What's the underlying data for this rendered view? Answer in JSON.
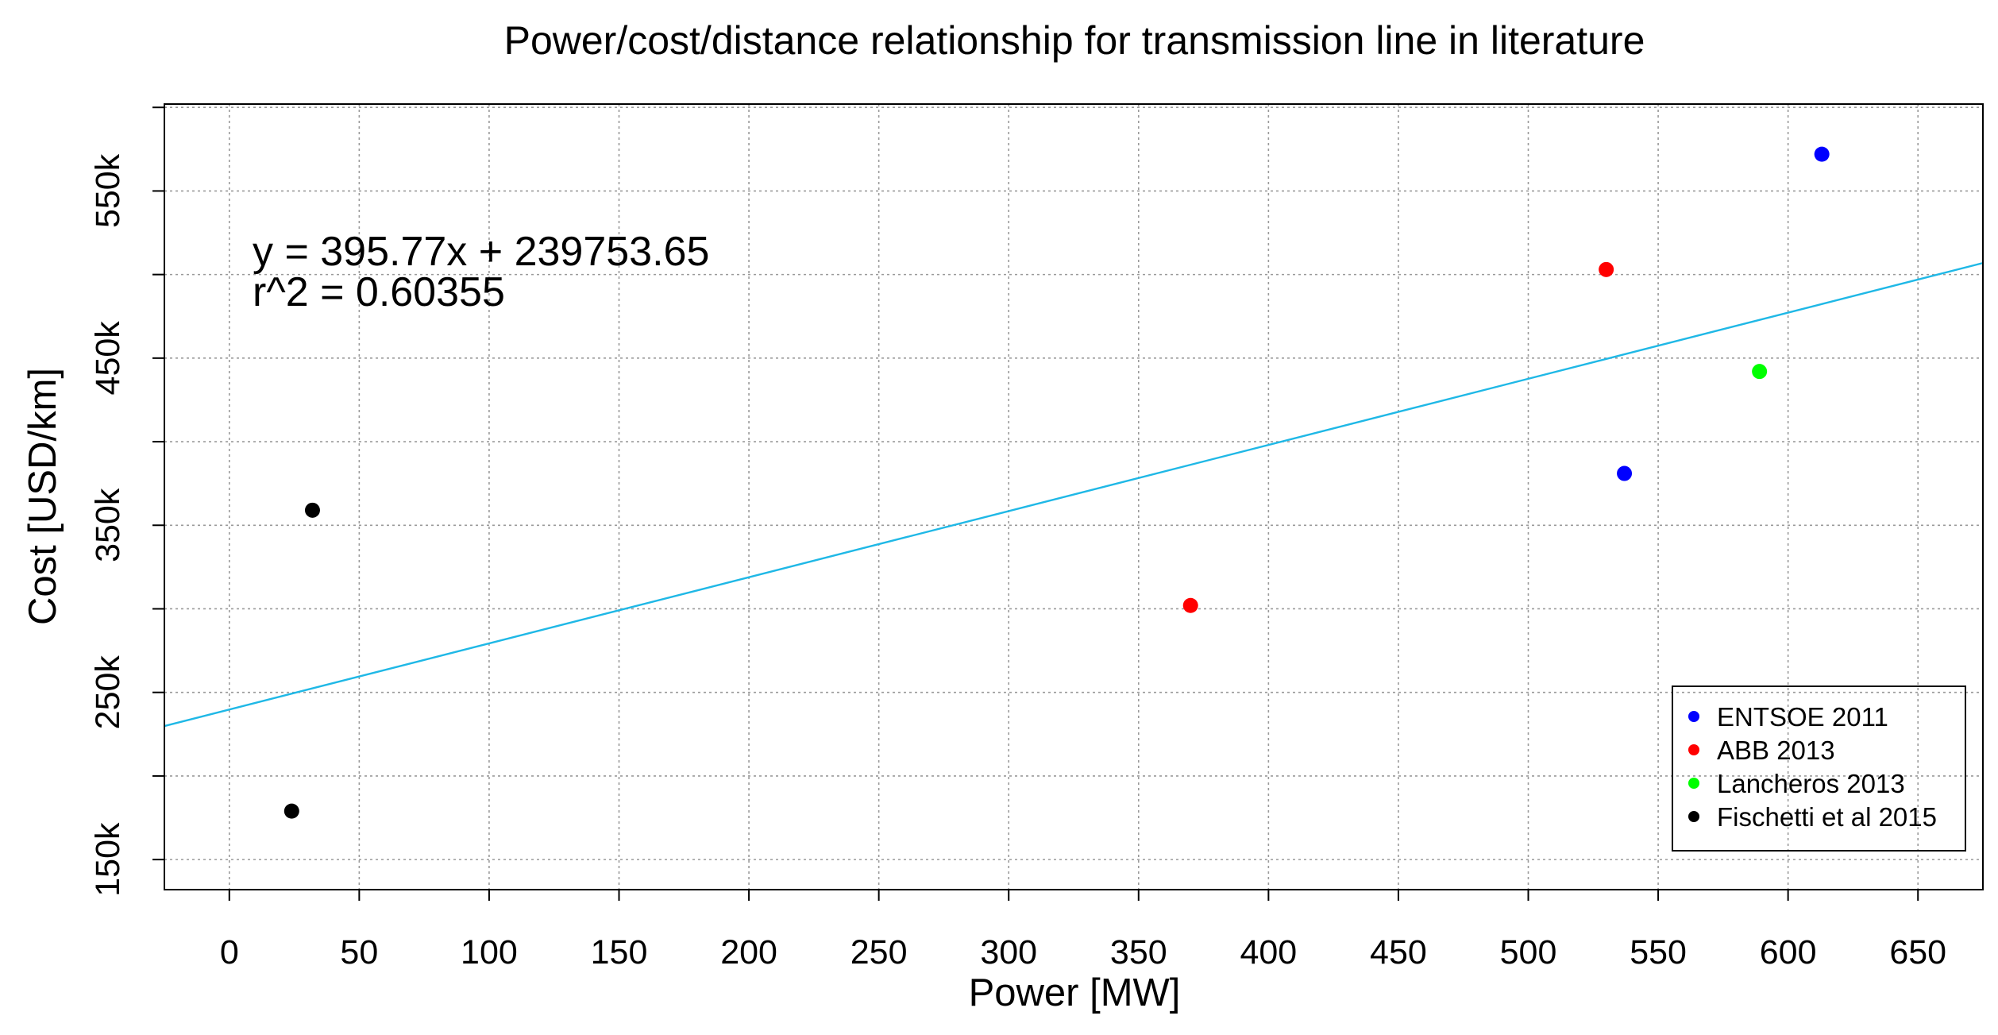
{
  "chart_data": {
    "type": "scatter",
    "title": "Power/cost/distance relationship for transmission line in literature",
    "xlabel": "Power [MW]",
    "ylabel": "Cost [USD/km]",
    "xlim": [
      -25,
      675
    ],
    "ylim": [
      132000,
      602000
    ],
    "x_ticks": [
      0,
      50,
      100,
      150,
      200,
      250,
      300,
      350,
      400,
      450,
      500,
      550,
      600,
      650
    ],
    "x_tick_labels": [
      "0",
      "50",
      "100",
      "150",
      "200",
      "250",
      "300",
      "350",
      "400",
      "450",
      "500",
      "550",
      "600",
      "650"
    ],
    "y_ticks": [
      150000,
      200000,
      250000,
      300000,
      350000,
      400000,
      450000,
      500000,
      550000,
      600000
    ],
    "y_tick_labels": [
      "150k",
      "",
      "250k",
      "",
      "350k",
      "",
      "450k",
      "",
      "550k",
      ""
    ],
    "grid": true,
    "legend_position": "bottom-right",
    "series": [
      {
        "name": "ENTSOE 2011",
        "color": "#0000ff",
        "points": [
          [
            613,
            572000
          ],
          [
            537,
            381000
          ]
        ]
      },
      {
        "name": "ABB 2013",
        "color": "#ff0000",
        "points": [
          [
            530,
            503000
          ],
          [
            370,
            302000
          ]
        ]
      },
      {
        "name": "Lancheros 2013",
        "color": "#00ff00",
        "points": [
          [
            589,
            442000
          ]
        ]
      },
      {
        "name": "Fischetti et al 2015",
        "color": "#000000",
        "points": [
          [
            32,
            359000
          ],
          [
            24,
            179000
          ]
        ]
      }
    ],
    "fit_line": {
      "slope": 395.77,
      "intercept": 239753.65,
      "color": "#1fb8e6"
    },
    "annotations": [
      "y = 395.77x + 239753.65",
      "r^2 = 0.60355"
    ]
  }
}
